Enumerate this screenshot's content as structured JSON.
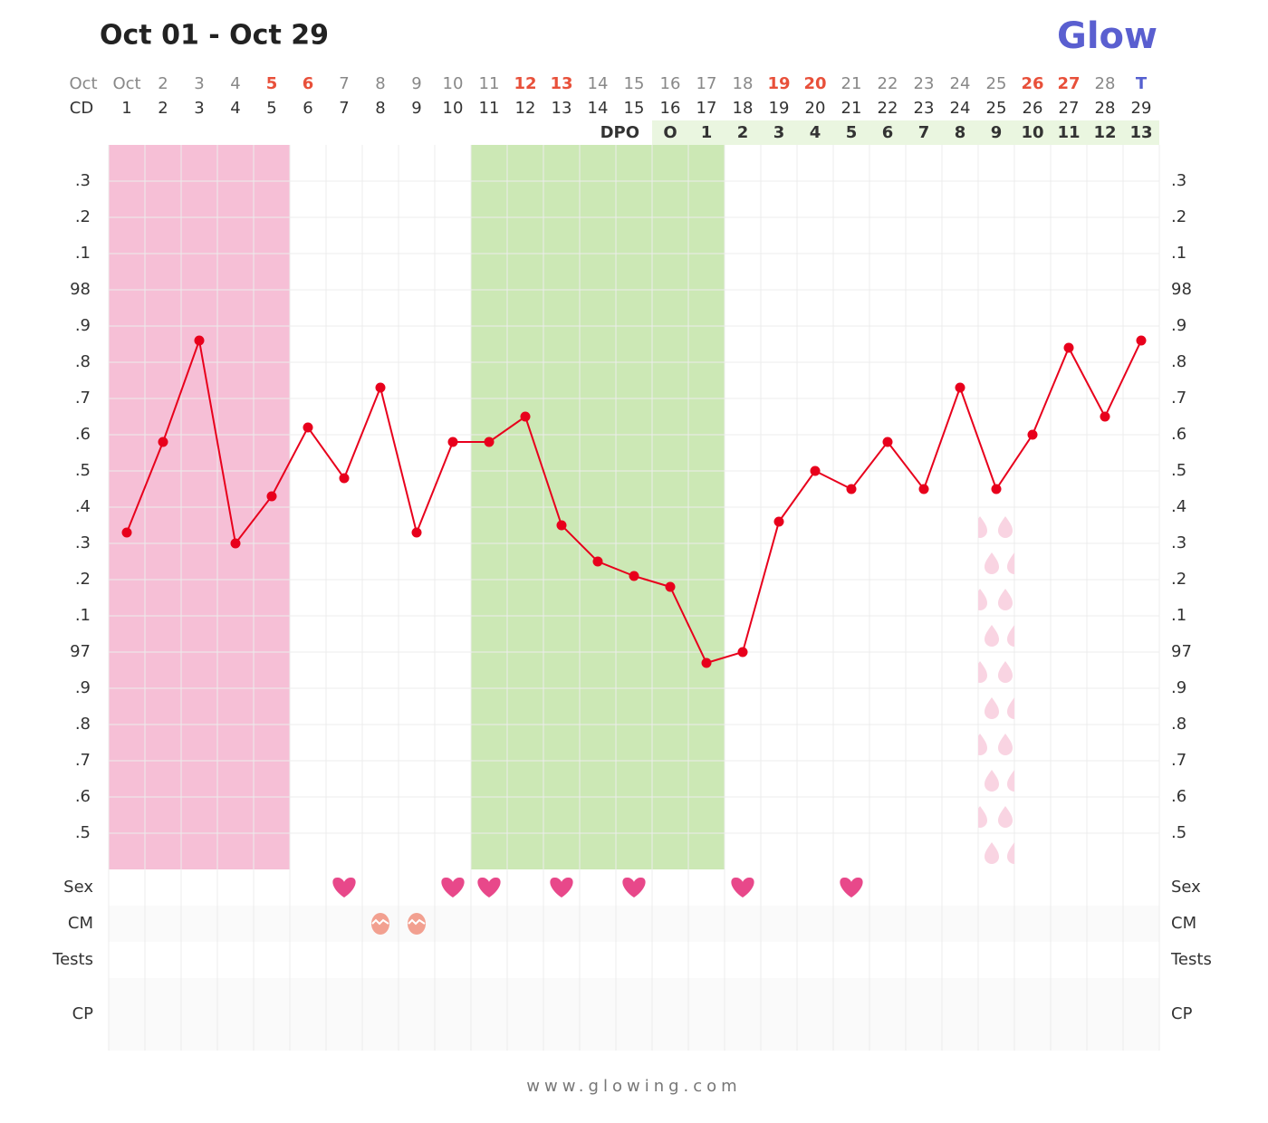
{
  "chart_data": {
    "type": "line",
    "title": "Oct 01 - Oct 29",
    "logo": "Glow",
    "footer": "www.glowing.com",
    "date_header": "Oct",
    "cd_header": "CD",
    "dpo_header": "DPO",
    "categories": [
      "Oct",
      "2",
      "3",
      "4",
      "5",
      "6",
      "7",
      "8",
      "9",
      "10",
      "11",
      "12",
      "13",
      "14",
      "15",
      "16",
      "17",
      "18",
      "19",
      "20",
      "21",
      "22",
      "23",
      "24",
      "25",
      "26",
      "27",
      "28",
      "T"
    ],
    "category_colors": [
      "#888",
      "#888",
      "#888",
      "#888",
      "#e8503a",
      "#e8503a",
      "#888",
      "#888",
      "#888",
      "#888",
      "#888",
      "#e8503a",
      "#e8503a",
      "#888",
      "#888",
      "#888",
      "#888",
      "#888",
      "#e8503a",
      "#e8503a",
      "#888",
      "#888",
      "#888",
      "#888",
      "#888",
      "#e8503a",
      "#e8503a",
      "#888",
      "#5560d0"
    ],
    "cycle_days": [
      1,
      2,
      3,
      4,
      5,
      6,
      7,
      8,
      9,
      10,
      11,
      12,
      13,
      14,
      15,
      16,
      17,
      18,
      19,
      20,
      21,
      22,
      23,
      24,
      25,
      26,
      27,
      28,
      29
    ],
    "dpo": [
      null,
      null,
      null,
      null,
      null,
      null,
      null,
      null,
      null,
      null,
      null,
      null,
      null,
      null,
      null,
      "O",
      1,
      2,
      3,
      4,
      5,
      6,
      7,
      8,
      9,
      10,
      11,
      12,
      13
    ],
    "values": [
      97.33,
      97.58,
      97.86,
      97.3,
      97.43,
      97.62,
      97.48,
      97.73,
      97.33,
      97.58,
      97.58,
      97.65,
      97.35,
      97.25,
      97.21,
      97.18,
      96.97,
      97.0,
      97.36,
      97.5,
      97.45,
      97.58,
      97.45,
      97.73,
      97.45,
      97.6,
      97.84,
      97.65,
      97.86
    ],
    "color": "#e8001c",
    "ylim": [
      96.4,
      98.4
    ],
    "yticks": [
      {
        "value": 98.3,
        "label": ".3"
      },
      {
        "value": 98.2,
        "label": ".2"
      },
      {
        "value": 98.1,
        "label": ".1"
      },
      98,
      {
        "value": 97.9,
        "label": ".9"
      },
      {
        "value": 97.8,
        "label": ".8"
      },
      {
        "value": 97.7,
        "label": ".7"
      },
      {
        "value": 97.6,
        "label": ".6"
      },
      {
        "value": 97.5,
        "label": ".5"
      },
      {
        "value": 97.4,
        "label": ".4"
      },
      {
        "value": 97.3,
        "label": ".3"
      },
      {
        "value": 97.2,
        "label": ".2"
      },
      {
        "value": 97.1,
        "label": ".1"
      },
      97,
      {
        "value": 96.9,
        "label": ".9"
      },
      {
        "value": 96.8,
        "label": ".8"
      },
      {
        "value": 96.7,
        "label": ".7"
      },
      {
        "value": 96.6,
        "label": ".6"
      },
      {
        "value": 96.5,
        "label": ".5"
      }
    ],
    "grid": true,
    "period": {
      "start": 1,
      "end": 5,
      "color": "#f6bfd6"
    },
    "fertile": {
      "start": 11,
      "end": 17,
      "color": "#cce8b5"
    },
    "spotting": {
      "day": 25,
      "color": "#f9d4e2"
    },
    "rows": [
      {
        "name": "Sex",
        "days": [
          7,
          10,
          11,
          13,
          15,
          18,
          21
        ],
        "color": "#e8488a"
      },
      {
        "name": "CM",
        "days": [
          8,
          9
        ],
        "color": "#f2a090"
      },
      {
        "name": "Tests",
        "days": []
      },
      {
        "name": "CP",
        "days": []
      }
    ]
  }
}
